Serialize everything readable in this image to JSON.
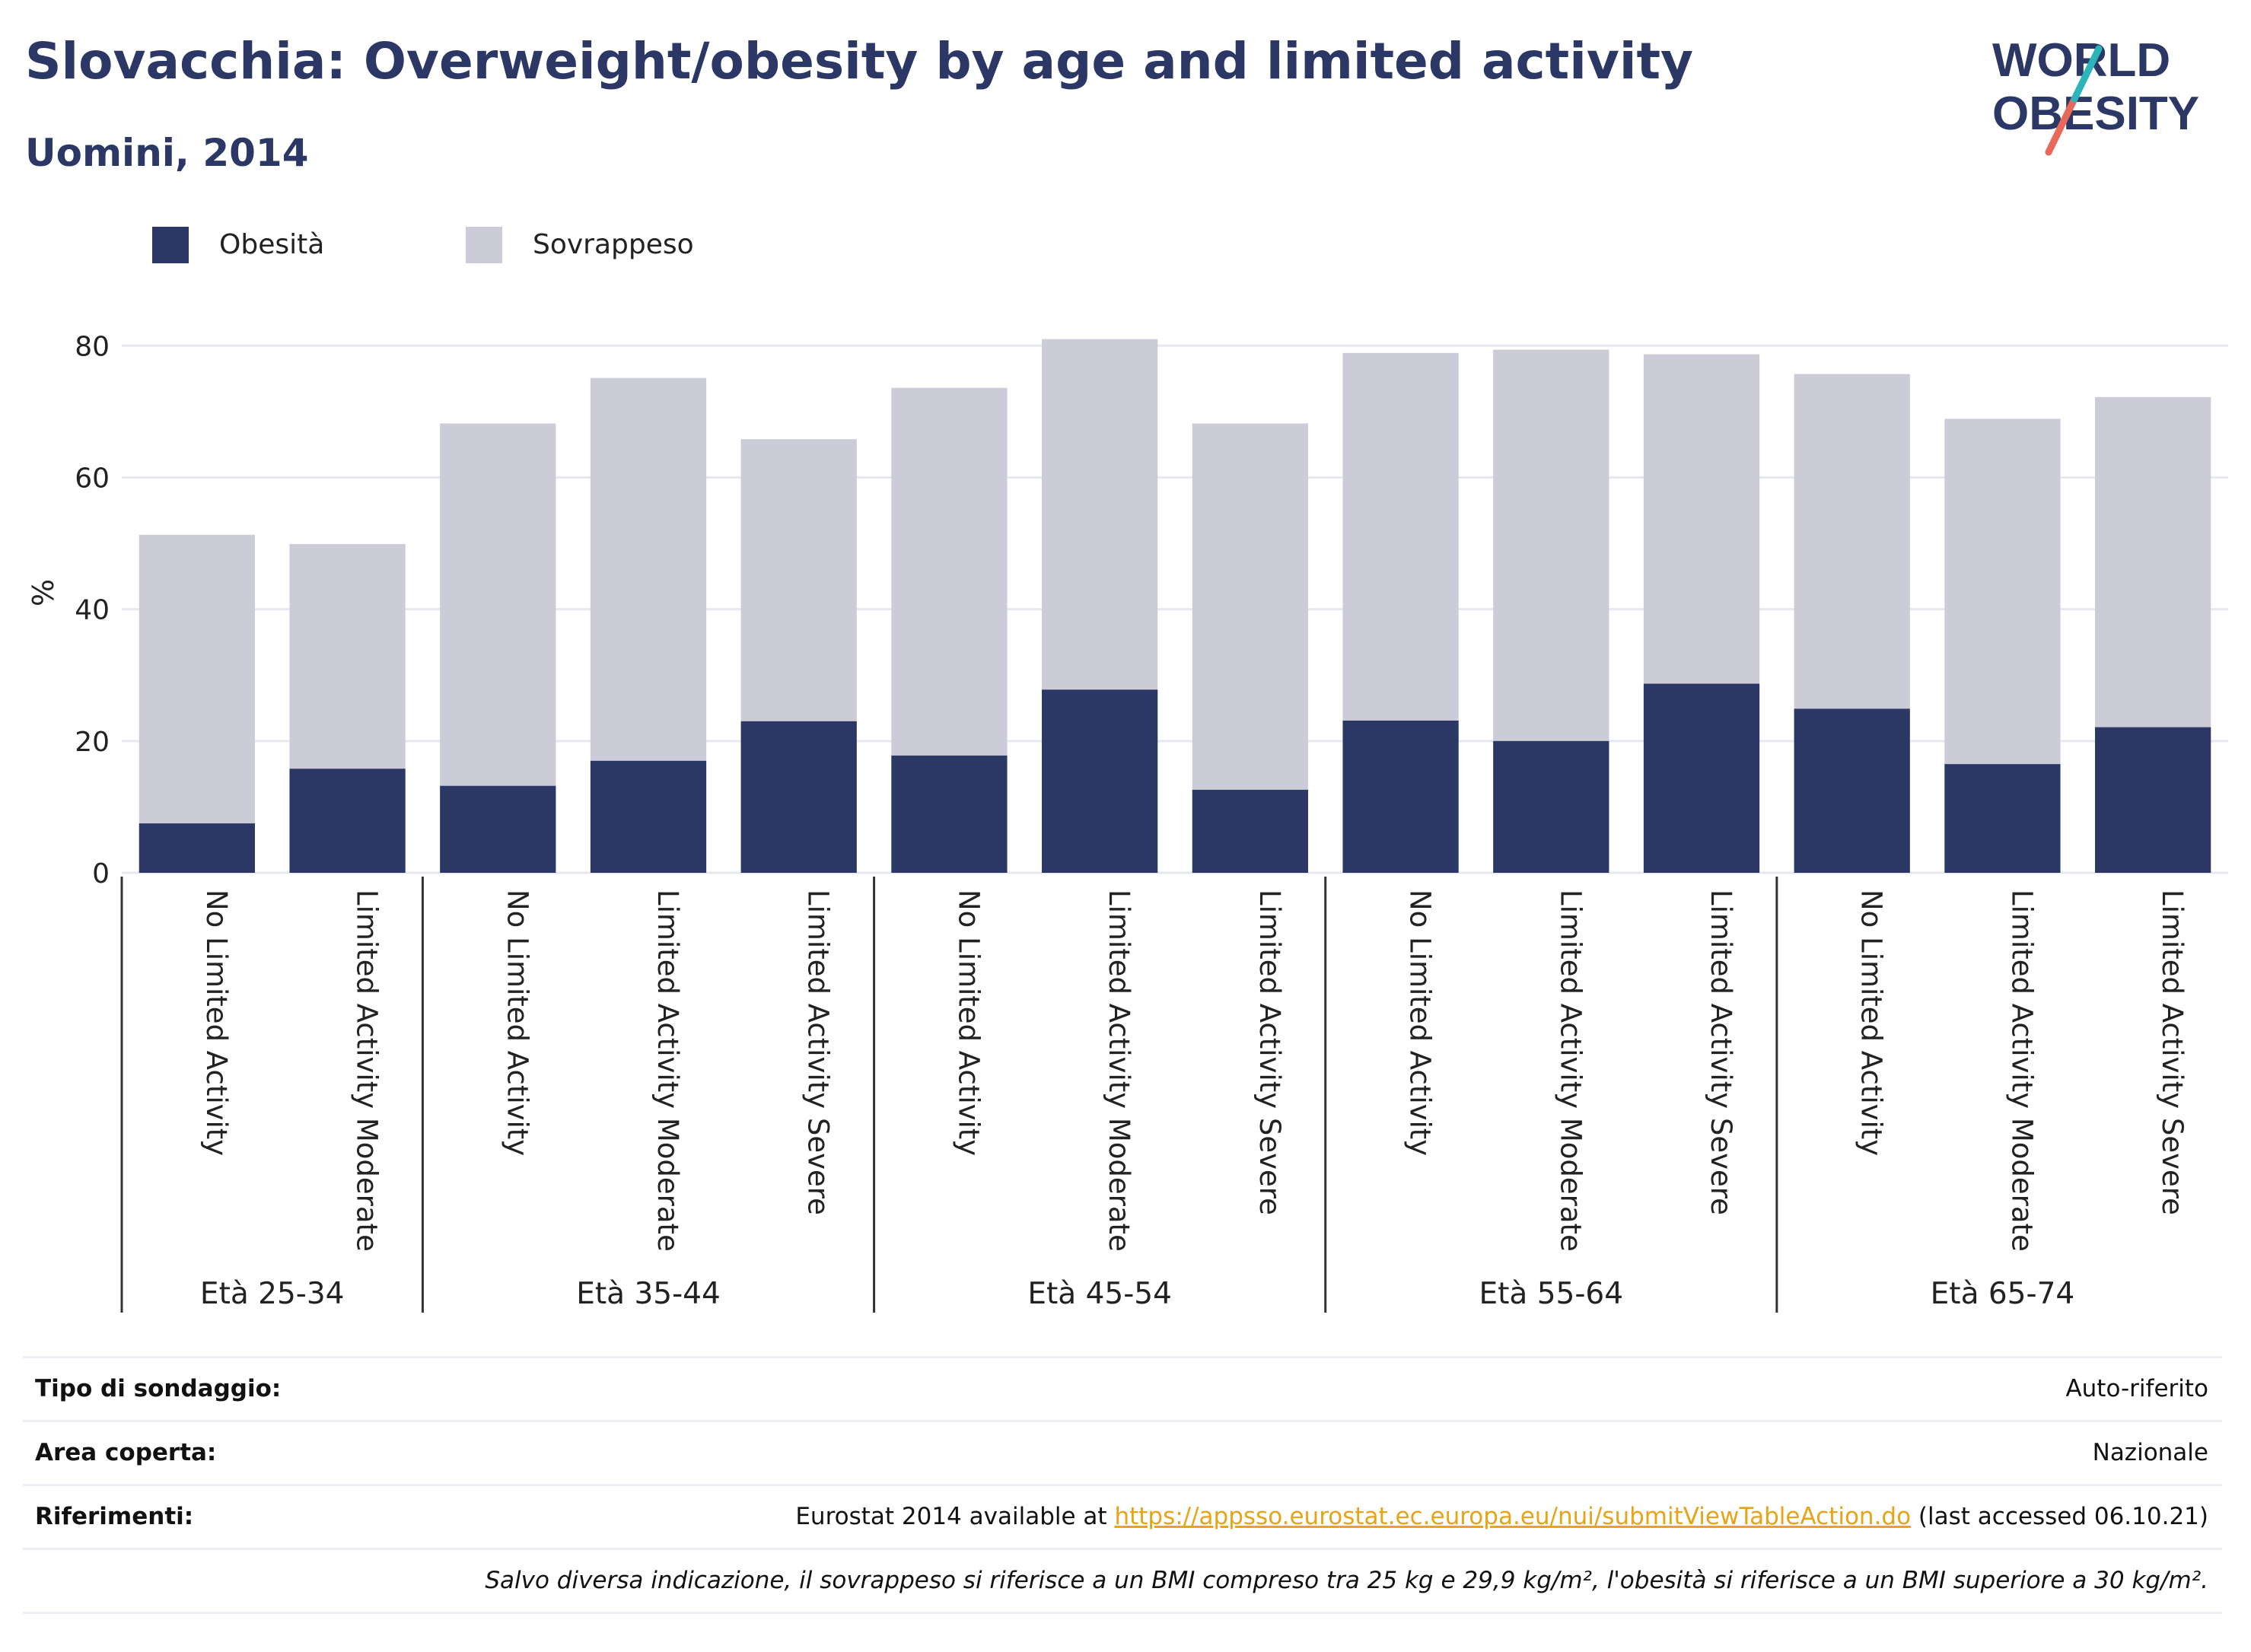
{
  "header": {
    "title": "Slovacchia: Overweight/obesity by age and limited activity",
    "subtitle": "Uomini, 2014"
  },
  "logo": {
    "line1": "WORLD",
    "line2": "OBESITY"
  },
  "colors": {
    "obesity": "#2b3765",
    "overweight": "#cbccd8",
    "accent": "#e8a317",
    "grid": "#e6e8ef"
  },
  "chart_data": {
    "type": "bar",
    "stacked": true,
    "ylabel": "%",
    "ylim": [
      0,
      85
    ],
    "yticks": [
      0,
      20,
      40,
      60,
      80
    ],
    "grid": true,
    "legend_position": "top-left",
    "series": [
      {
        "name": "Obesità",
        "color": "#2b3765",
        "values": [
          7.5,
          15.8,
          13.2,
          17.0,
          23.0,
          17.8,
          27.8,
          12.6,
          23.1,
          20.0,
          28.7,
          24.9,
          16.5,
          22.1
        ]
      },
      {
        "name": "Sovrappeso",
        "color": "#cbccd8",
        "values": [
          43.8,
          34.1,
          55.0,
          58.1,
          42.8,
          55.8,
          53.2,
          55.6,
          55.8,
          59.4,
          50.0,
          50.8,
          52.4,
          50.1
        ]
      }
    ],
    "categories": [
      "No Limited Activity",
      "Limited Activity Moderate",
      "No Limited Activity",
      "Limited Activity Moderate",
      "Limited Activity Severe",
      "No Limited Activity",
      "Limited Activity Moderate",
      "Limited Activity Severe",
      "No Limited Activity",
      "Limited Activity Moderate",
      "Limited Activity Severe",
      "No Limited Activity",
      "Limited Activity Moderate",
      "Limited Activity Severe"
    ],
    "groups": [
      {
        "label": "Età 25-34",
        "count": 2
      },
      {
        "label": "Età 35-44",
        "count": 3
      },
      {
        "label": "Età 45-54",
        "count": 3
      },
      {
        "label": "Età 55-64",
        "count": 3
      },
      {
        "label": "Età 65-74",
        "count": 3
      }
    ]
  },
  "info": {
    "survey_label": "Tipo di sondaggio:",
    "survey_value": "Auto-riferito",
    "area_label": "Area coperta:",
    "area_value": "Nazionale",
    "refs_label": "Riferimenti:",
    "refs_prefix": "Eurostat 2014 available at ",
    "refs_link": "https://appsso.eurostat.ec.europa.eu/nui/submitViewTableAction.do",
    "refs_suffix": " (last accessed 06.10.21)",
    "note": "Salvo diversa indicazione, il sovrappeso si riferisce a un BMI compreso tra 25 kg e 29,9 kg/m², l'obesità si riferisce a un BMI superiore a 30 kg/m²."
  }
}
